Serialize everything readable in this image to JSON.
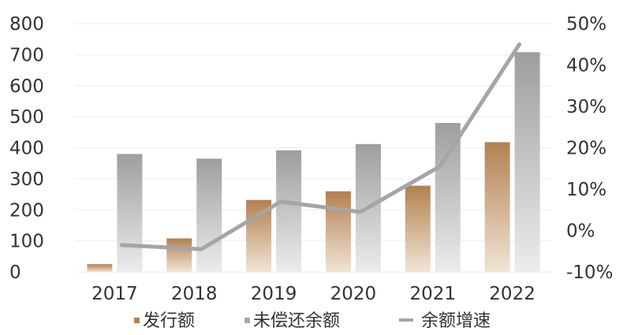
{
  "chart_data": {
    "type": "bar",
    "title": "",
    "categories": [
      "2017",
      "2018",
      "2019",
      "2020",
      "2021",
      "2022"
    ],
    "series": [
      {
        "name": "发行额",
        "type": "bar",
        "axis": "left",
        "values": [
          25,
          108,
          232,
          260,
          278,
          418
        ]
      },
      {
        "name": "未偿还余额",
        "type": "bar",
        "axis": "left",
        "values": [
          380,
          365,
          392,
          412,
          480,
          708
        ]
      },
      {
        "name": "余额增速",
        "type": "line",
        "axis": "right",
        "unit": "%",
        "values": [
          -3.5,
          -4.5,
          7,
          4.5,
          15.5,
          45
        ]
      }
    ],
    "y_left": {
      "min": 0,
      "max": 800,
      "ticks": [
        "0",
        "100",
        "200",
        "300",
        "400",
        "500",
        "600",
        "700",
        "800"
      ]
    },
    "y_right": {
      "min": -10,
      "max": 50,
      "ticks": [
        "-10%",
        "0%",
        "10%",
        "20%",
        "30%",
        "40%",
        "50%"
      ]
    },
    "grid": true,
    "legend_position": "bottom",
    "colors": {
      "issuance": "#b3804f",
      "outstanding": "#a8a8a8",
      "growth_line": "#a5a5a5"
    }
  }
}
